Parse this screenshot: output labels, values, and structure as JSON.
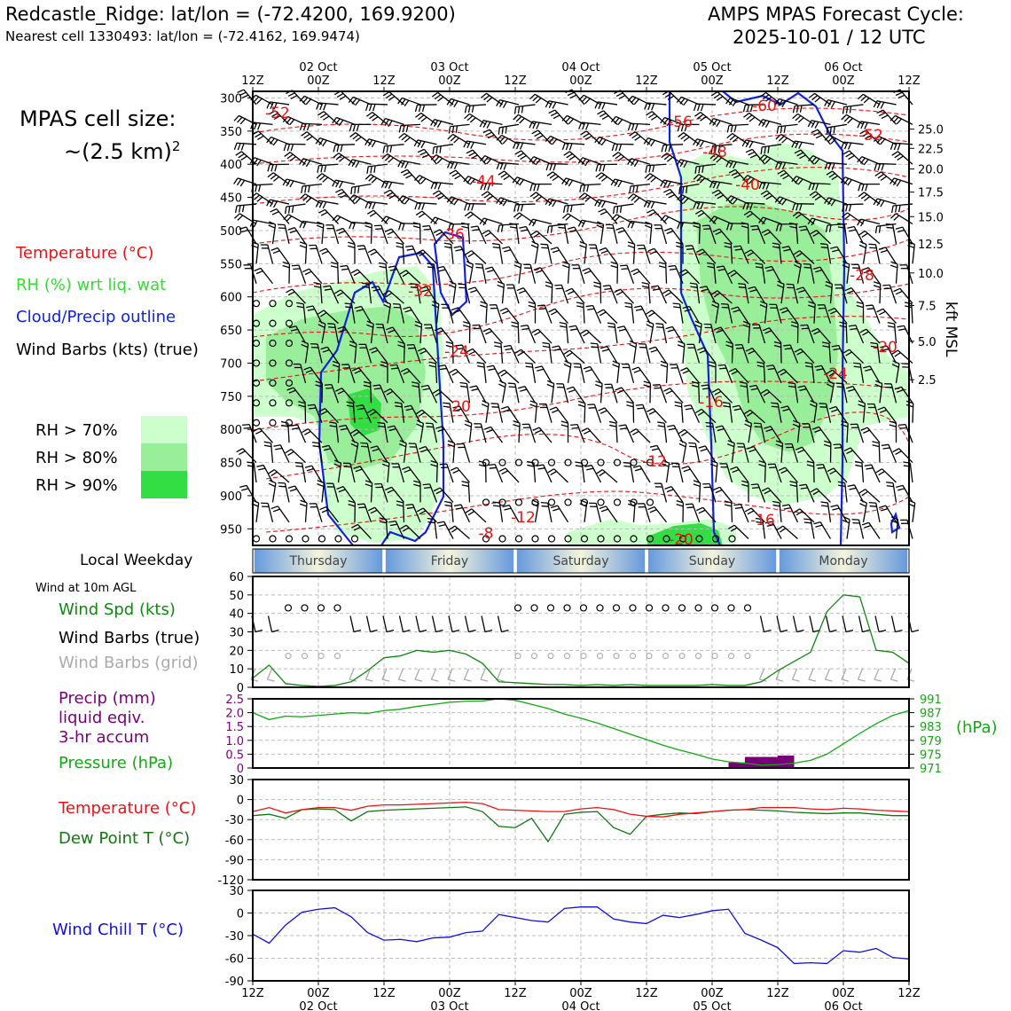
{
  "header": {
    "station_line": "Redcastle_Ridge: lat/lon = (-72.4200, 169.9200)",
    "nearest_line": "Nearest cell 1330493: lat/lon = (-72.4162, 169.9474)",
    "cycle_title": "AMPS MPAS Forecast Cycle:",
    "cycle_time": "2025-10-01 / 12 UTC"
  },
  "legend": {
    "cell_size_1": "MPAS cell size:",
    "cell_size_2": "~(2.5 km)",
    "cell_size_sup": "2",
    "temperature": "Temperature (°C)",
    "rh": "RH (%) wrt liq. wat",
    "cloud": "Cloud/Precip outline",
    "wind_barbs": "Wind Barbs (kts) (true)",
    "rh_levels": [
      {
        "label": "RH > 70%",
        "color": "#ccffcc"
      },
      {
        "label": "RH > 80%",
        "color": "#99ee99"
      },
      {
        "label": "RH > 90%",
        "color": "#33dd44"
      }
    ]
  },
  "side_labels": {
    "local_weekday": "Local Weekday",
    "wind_10m": "Wind at 10m AGL",
    "wind_spd": "Wind Spd (kts)",
    "wind_barbs_true": "Wind Barbs (true)",
    "wind_barbs_grid": "Wind Barbs (grid)",
    "precip_1": "Precip (mm)",
    "precip_2": "liquid eqiv.",
    "precip_3": "3-hr accum",
    "pressure": "Pressure (hPa)",
    "temperature": "Temperature (°C)",
    "dewpoint": "Dew Point T (°C)",
    "wind_chill": "Wind Chill T (°C)",
    "hpa_unit": "(hPa)",
    "kft_msl": "kft MSL"
  },
  "colors": {
    "temperature": "#ee1111",
    "rh": "#33dd33",
    "cloud": "#1122dd",
    "wind_spd": "#118811",
    "wind_grid": "#aaaaaa",
    "precip": "#770077",
    "pressure": "#11aa11",
    "dewpoint": "#117711",
    "wind_chill": "#1111dd"
  },
  "chart_data": [
    {
      "type": "line",
      "panel": "time-height cross section",
      "x": [
        "12Z",
        "00Z",
        "12Z",
        "00Z",
        "12Z",
        "00Z",
        "12Z",
        "00Z",
        "12Z",
        "00Z",
        "12Z"
      ],
      "x_dates": [
        "",
        "02 Oct",
        "",
        "03 Oct",
        "",
        "04 Oct",
        "",
        "05 Oct",
        "",
        "06 Oct",
        ""
      ],
      "y_ticks_hpa": [
        300,
        350,
        400,
        450,
        500,
        550,
        600,
        650,
        700,
        750,
        800,
        850,
        900,
        950
      ],
      "y_ticks_kft": [
        25.0,
        22.5,
        20.0,
        17.5,
        15.0,
        12.5,
        10.0,
        7.5,
        5.0,
        2.5
      ],
      "ylim": [
        975,
        290
      ],
      "temperature_labels": [
        "-52",
        "-56",
        "-60",
        "-52",
        "-48",
        "-44",
        "-40",
        "-36",
        "-32",
        "-28",
        "-24",
        "-20",
        "-24",
        "-20",
        "-16",
        "-12",
        "-12",
        "-16",
        "-8",
        "-20"
      ]
    },
    {
      "type": "bar",
      "panel": "local weekday",
      "categories": [
        "Thursday",
        "Friday",
        "Saturday",
        "Sunday",
        "Monday"
      ]
    },
    {
      "type": "line",
      "panel": "wind at 10m",
      "ylim": [
        0,
        60
      ],
      "y_ticks": [
        "0",
        "10",
        "20",
        "30",
        "40",
        "50",
        "60"
      ],
      "x_hours": [
        0,
        3,
        6,
        9,
        12,
        15,
        18,
        21,
        24,
        27,
        30,
        33,
        36,
        39,
        42,
        45,
        48,
        51,
        54,
        57,
        60,
        63,
        66,
        69,
        72,
        75,
        78,
        81,
        84,
        87,
        90,
        93,
        96,
        99,
        102,
        105,
        108,
        111,
        114,
        117,
        120
      ],
      "wind_speed_kts": [
        5,
        12,
        2,
        1,
        0.5,
        1,
        3,
        9,
        16,
        17,
        20,
        19,
        20,
        18,
        13,
        3,
        2.5,
        2,
        1.5,
        1.5,
        1,
        1.5,
        1,
        1.5,
        1,
        1,
        1,
        1,
        1.5,
        1,
        1,
        3,
        9,
        14,
        19,
        41,
        50,
        49,
        20,
        19,
        13
      ]
    },
    {
      "type": "line",
      "panel": "precip and pressure",
      "precip_ylim": [
        0,
        2.5
      ],
      "precip_ticks": [
        "0",
        "0.5",
        "1.0",
        "1.5",
        "2.0",
        "2.5"
      ],
      "pressure_ticks": [
        "971",
        "975",
        "979",
        "983",
        "987",
        "991"
      ],
      "pressure_ylim": [
        971,
        991
      ],
      "x_hours": [
        0,
        3,
        6,
        9,
        12,
        15,
        18,
        21,
        24,
        27,
        30,
        33,
        36,
        39,
        42,
        45,
        48,
        51,
        54,
        57,
        60,
        63,
        66,
        69,
        72,
        75,
        78,
        81,
        84,
        87,
        90,
        93,
        96,
        99,
        102,
        105,
        108,
        111,
        114,
        117,
        120
      ],
      "pressure_hpa": [
        987,
        985,
        986,
        985.8,
        986.2,
        986.6,
        987,
        986.8,
        987.6,
        988,
        988.8,
        989.4,
        990,
        990.3,
        990.4,
        991,
        990.6,
        989.4,
        988.2,
        986.6,
        985.4,
        984,
        982.4,
        980.8,
        979.2,
        977.6,
        976.2,
        975,
        973.6,
        972.8,
        972.4,
        971.8,
        972,
        972.4,
        973.2,
        975,
        978,
        981,
        983.8,
        986.2,
        987.6
      ],
      "precip_bars": [
        {
          "start_hour": 87,
          "end_hour": 90,
          "mm": 0.2
        },
        {
          "start_hour": 90,
          "end_hour": 96,
          "mm": 0.4
        },
        {
          "start_hour": 96,
          "end_hour": 99,
          "mm": 0.45
        }
      ]
    },
    {
      "type": "line",
      "panel": "temperature and dew point",
      "ylim": [
        -120,
        30
      ],
      "y_ticks": [
        "-120",
        "-90",
        "-60",
        "-30",
        "0",
        "30"
      ],
      "x_hours": [
        0,
        3,
        6,
        9,
        12,
        15,
        18,
        21,
        24,
        27,
        30,
        33,
        36,
        39,
        42,
        45,
        48,
        51,
        54,
        57,
        60,
        63,
        66,
        69,
        72,
        75,
        78,
        81,
        84,
        87,
        90,
        93,
        96,
        99,
        102,
        105,
        108,
        111,
        114,
        117,
        120
      ],
      "temperature_c": [
        -18,
        -12,
        -20,
        -15,
        -12,
        -12,
        -16,
        -10,
        -8,
        -8,
        -7,
        -6,
        -5,
        -4,
        -6,
        -15,
        -16,
        -17,
        -18,
        -18,
        -14,
        -12,
        -15,
        -22,
        -25,
        -26,
        -22,
        -20,
        -18,
        -16,
        -15,
        -12,
        -12,
        -12,
        -14,
        -15,
        -13,
        -14,
        -16,
        -17,
        -18
      ],
      "dewpoint_c": [
        -24,
        -22,
        -28,
        -15,
        -14,
        -15,
        -32,
        -18,
        -16,
        -15,
        -14,
        -13,
        -12,
        -11,
        -18,
        -40,
        -42,
        -28,
        -63,
        -22,
        -19,
        -18,
        -42,
        -52,
        -25,
        -22,
        -20,
        -21,
        -18,
        -16,
        -15,
        -16,
        -17,
        -19,
        -20,
        -21,
        -20,
        -20,
        -22,
        -24,
        -24
      ]
    },
    {
      "type": "line",
      "panel": "wind chill",
      "ylim": [
        -90,
        30
      ],
      "y_ticks": [
        "-90",
        "-60",
        "-30",
        "0",
        "30"
      ],
      "x_hours": [
        0,
        3,
        6,
        9,
        12,
        15,
        18,
        21,
        24,
        27,
        30,
        33,
        36,
        39,
        42,
        45,
        48,
        51,
        54,
        57,
        60,
        63,
        66,
        69,
        72,
        75,
        78,
        81,
        84,
        87,
        90,
        93,
        96,
        99,
        102,
        105,
        108,
        111,
        114,
        117,
        120
      ],
      "wind_chill_c": [
        -28,
        -40,
        -16,
        1,
        5,
        7,
        -5,
        -26,
        -36,
        -35,
        -38,
        -33,
        -32,
        -26,
        -24,
        -2,
        -6,
        -10,
        -12,
        6,
        8,
        8,
        -8,
        -12,
        -14,
        -3,
        -6,
        -2,
        3,
        5,
        -27,
        -36,
        -46,
        -67,
        -66,
        -67,
        -50,
        -52,
        -47,
        -59,
        -61
      ]
    }
  ]
}
